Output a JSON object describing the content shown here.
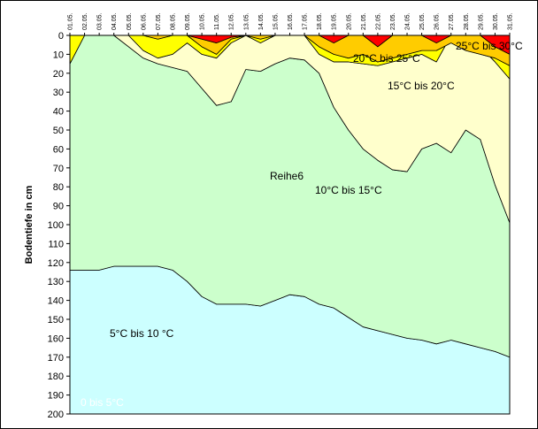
{
  "chart_data": {
    "type": "area",
    "ylabel": "Bodentiefe in cm",
    "ylim": [
      0,
      200
    ],
    "y_inverted": true,
    "y_ticks": [
      0,
      10,
      20,
      30,
      40,
      50,
      60,
      70,
      80,
      90,
      100,
      110,
      120,
      130,
      140,
      150,
      160,
      170,
      180,
      190,
      200
    ],
    "x": [
      "01.05.",
      "02.05.",
      "03.05.",
      "04.05.",
      "05.05.",
      "06.05.",
      "07.05.",
      "08.05.",
      "09.05.",
      "10.05.",
      "11.05.",
      "12.05.",
      "13.05.",
      "14.05.",
      "15.05.",
      "16.05.",
      "17.05.",
      "18.05.",
      "19.05.",
      "20.05.",
      "21.05.",
      "22.05.",
      "23.05.",
      "24.05.",
      "25.05.",
      "26.05.",
      "27.05.",
      "28.05.",
      "29.05.",
      "30.05.",
      "31.05."
    ],
    "colors": {
      "band_0_5": "#ccffff",
      "band_5_10": "#ccffcc",
      "band_10_15": "#ffffcc",
      "band_15_20": "#ffff00",
      "band_20_25": "#ffcc00",
      "band_25_30": "#ff0000"
    },
    "series": [
      {
        "name": "25°C bis 30°C",
        "label": "25°C bis 30°C",
        "values": [
          0,
          0,
          0,
          0,
          0,
          0,
          0,
          0,
          0,
          2,
          4,
          1,
          0,
          0,
          0,
          0,
          0,
          0,
          4,
          0,
          0,
          6,
          0,
          0,
          0,
          4,
          0,
          0,
          0,
          6,
          10
        ]
      },
      {
        "name": "20°C bis 25°C",
        "label": "20°C bis 25°C",
        "values": [
          0,
          0,
          0,
          0,
          0,
          0,
          2,
          0,
          0,
          6,
          10,
          2,
          0,
          2,
          0,
          0,
          0,
          6,
          10,
          12,
          10,
          14,
          12,
          10,
          8,
          8,
          4,
          8,
          10,
          12,
          16
        ]
      },
      {
        "name": "15°C bis 20°C",
        "label": "15°C bis 20°C",
        "values": [
          15,
          0,
          0,
          0,
          0,
          8,
          12,
          10,
          4,
          10,
          12,
          4,
          0,
          4,
          0,
          0,
          0,
          10,
          14,
          14,
          15,
          16,
          14,
          12,
          10,
          14,
          0,
          4,
          6,
          14,
          23
        ]
      },
      {
        "name": "10°C bis 15°C",
        "label": "10°C bis 15°C",
        "values": [
          15,
          0,
          0,
          0,
          6,
          12,
          15,
          17,
          19,
          28,
          37,
          35,
          18,
          19,
          15,
          12,
          13,
          20,
          38,
          50,
          60,
          66,
          71,
          72,
          60,
          57,
          62,
          50,
          55,
          79,
          99
        ]
      },
      {
        "name": "Reihe6",
        "label": "Reihe6",
        "values": [
          124,
          124,
          124,
          122,
          122,
          122,
          122,
          124,
          130,
          138,
          142,
          142,
          142,
          143,
          140,
          137,
          138,
          142,
          144,
          149,
          154,
          156,
          158,
          160,
          161,
          163,
          161,
          163,
          165,
          167,
          170
        ]
      },
      {
        "name": "5°C bis 10 °C",
        "label": "5°C bis 10 °C",
        "values": [
          124,
          124,
          124,
          122,
          122,
          122,
          122,
          124,
          130,
          138,
          142,
          142,
          142,
          143,
          140,
          137,
          138,
          142,
          144,
          149,
          154,
          156,
          158,
          160,
          161,
          163,
          161,
          163,
          165,
          167,
          170
        ]
      },
      {
        "name": "0 bis 5°C",
        "label": "0 bis 5°C",
        "values": [
          200,
          200,
          200,
          200,
          200,
          200,
          200,
          200,
          200,
          200,
          200,
          200,
          200,
          200,
          200,
          200,
          200,
          200,
          200,
          200,
          200,
          200,
          200,
          200,
          200,
          200,
          200,
          200,
          200,
          200,
          200
        ]
      }
    ]
  }
}
